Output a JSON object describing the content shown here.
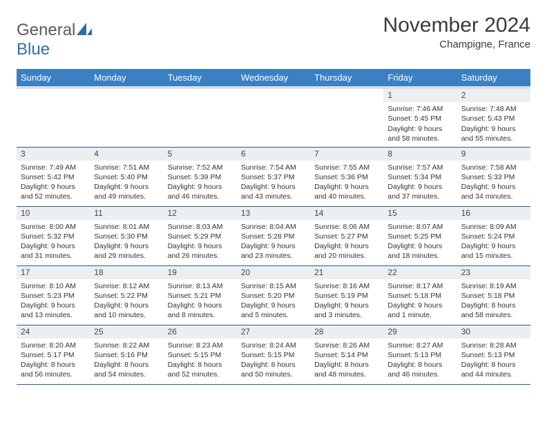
{
  "logo": {
    "word1": "General",
    "word2": "Blue"
  },
  "title": "November 2024",
  "subtitle": "Champigne, France",
  "colors": {
    "header_bg": "#3a80c3",
    "header_text": "#ffffff",
    "daynum_bg": "#eceff1",
    "row_border": "#2c5a8a",
    "header_underbar": "#d8dde2",
    "logo_accent": "#2f6fa7"
  },
  "weekdays": [
    "Sunday",
    "Monday",
    "Tuesday",
    "Wednesday",
    "Thursday",
    "Friday",
    "Saturday"
  ],
  "cells": [
    {
      "day": "",
      "text": ""
    },
    {
      "day": "",
      "text": ""
    },
    {
      "day": "",
      "text": ""
    },
    {
      "day": "",
      "text": ""
    },
    {
      "day": "",
      "text": ""
    },
    {
      "day": "1",
      "text": "Sunrise: 7:46 AM\nSunset: 5:45 PM\nDaylight: 9 hours and 58 minutes."
    },
    {
      "day": "2",
      "text": "Sunrise: 7:48 AM\nSunset: 5:43 PM\nDaylight: 9 hours and 55 minutes."
    },
    {
      "day": "3",
      "text": "Sunrise: 7:49 AM\nSunset: 5:42 PM\nDaylight: 9 hours and 52 minutes."
    },
    {
      "day": "4",
      "text": "Sunrise: 7:51 AM\nSunset: 5:40 PM\nDaylight: 9 hours and 49 minutes."
    },
    {
      "day": "5",
      "text": "Sunrise: 7:52 AM\nSunset: 5:39 PM\nDaylight: 9 hours and 46 minutes."
    },
    {
      "day": "6",
      "text": "Sunrise: 7:54 AM\nSunset: 5:37 PM\nDaylight: 9 hours and 43 minutes."
    },
    {
      "day": "7",
      "text": "Sunrise: 7:55 AM\nSunset: 5:36 PM\nDaylight: 9 hours and 40 minutes."
    },
    {
      "day": "8",
      "text": "Sunrise: 7:57 AM\nSunset: 5:34 PM\nDaylight: 9 hours and 37 minutes."
    },
    {
      "day": "9",
      "text": "Sunrise: 7:58 AM\nSunset: 5:33 PM\nDaylight: 9 hours and 34 minutes."
    },
    {
      "day": "10",
      "text": "Sunrise: 8:00 AM\nSunset: 5:32 PM\nDaylight: 9 hours and 31 minutes."
    },
    {
      "day": "11",
      "text": "Sunrise: 8:01 AM\nSunset: 5:30 PM\nDaylight: 9 hours and 29 minutes."
    },
    {
      "day": "12",
      "text": "Sunrise: 8:03 AM\nSunset: 5:29 PM\nDaylight: 9 hours and 26 minutes."
    },
    {
      "day": "13",
      "text": "Sunrise: 8:04 AM\nSunset: 5:28 PM\nDaylight: 9 hours and 23 minutes."
    },
    {
      "day": "14",
      "text": "Sunrise: 8:06 AM\nSunset: 5:27 PM\nDaylight: 9 hours and 20 minutes."
    },
    {
      "day": "15",
      "text": "Sunrise: 8:07 AM\nSunset: 5:25 PM\nDaylight: 9 hours and 18 minutes."
    },
    {
      "day": "16",
      "text": "Sunrise: 8:09 AM\nSunset: 5:24 PM\nDaylight: 9 hours and 15 minutes."
    },
    {
      "day": "17",
      "text": "Sunrise: 8:10 AM\nSunset: 5:23 PM\nDaylight: 9 hours and 13 minutes."
    },
    {
      "day": "18",
      "text": "Sunrise: 8:12 AM\nSunset: 5:22 PM\nDaylight: 9 hours and 10 minutes."
    },
    {
      "day": "19",
      "text": "Sunrise: 8:13 AM\nSunset: 5:21 PM\nDaylight: 9 hours and 8 minutes."
    },
    {
      "day": "20",
      "text": "Sunrise: 8:15 AM\nSunset: 5:20 PM\nDaylight: 9 hours and 5 minutes."
    },
    {
      "day": "21",
      "text": "Sunrise: 8:16 AM\nSunset: 5:19 PM\nDaylight: 9 hours and 3 minutes."
    },
    {
      "day": "22",
      "text": "Sunrise: 8:17 AM\nSunset: 5:18 PM\nDaylight: 9 hours and 1 minute."
    },
    {
      "day": "23",
      "text": "Sunrise: 8:19 AM\nSunset: 5:18 PM\nDaylight: 8 hours and 58 minutes."
    },
    {
      "day": "24",
      "text": "Sunrise: 8:20 AM\nSunset: 5:17 PM\nDaylight: 8 hours and 56 minutes."
    },
    {
      "day": "25",
      "text": "Sunrise: 8:22 AM\nSunset: 5:16 PM\nDaylight: 8 hours and 54 minutes."
    },
    {
      "day": "26",
      "text": "Sunrise: 8:23 AM\nSunset: 5:15 PM\nDaylight: 8 hours and 52 minutes."
    },
    {
      "day": "27",
      "text": "Sunrise: 8:24 AM\nSunset: 5:15 PM\nDaylight: 8 hours and 50 minutes."
    },
    {
      "day": "28",
      "text": "Sunrise: 8:26 AM\nSunset: 5:14 PM\nDaylight: 8 hours and 48 minutes."
    },
    {
      "day": "29",
      "text": "Sunrise: 8:27 AM\nSunset: 5:13 PM\nDaylight: 8 hours and 46 minutes."
    },
    {
      "day": "30",
      "text": "Sunrise: 8:28 AM\nSunset: 5:13 PM\nDaylight: 8 hours and 44 minutes."
    }
  ]
}
